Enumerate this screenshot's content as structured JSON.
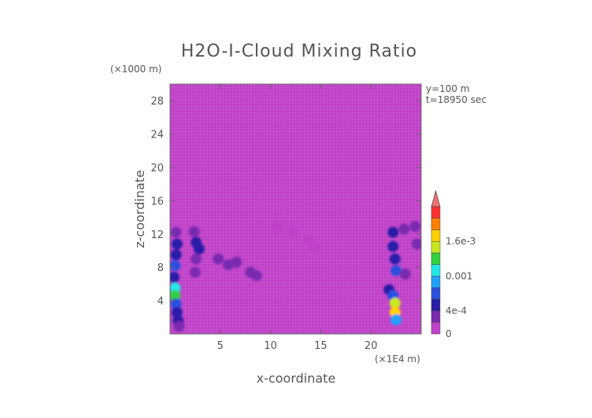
{
  "chart_data": {
    "type": "heatmap",
    "title": "H2O-I-Cloud Mixing Ratio",
    "xlabel": "x-coordinate",
    "ylabel": "z-coordinate",
    "x_unit": "(×1E4 m)",
    "y_unit": "(×1000 m)",
    "annotations": [
      "y=100 m",
      "t=18950 sec"
    ],
    "xlim": [
      0,
      25
    ],
    "ylim": [
      0,
      30
    ],
    "x_ticks": [
      5,
      10,
      15,
      20
    ],
    "y_ticks": [
      4,
      8,
      12,
      16,
      20,
      24,
      28
    ],
    "colorbar": {
      "levels": [
        0,
        0.0002,
        0.0004,
        0.0006,
        0.0008,
        0.001,
        0.0012,
        0.0014,
        0.0016,
        0.0018,
        0.002
      ],
      "labels": [
        "0",
        "4e-4",
        "0.001",
        "1.6e-3"
      ],
      "label_values": [
        0,
        0.0004,
        0.001,
        0.0016
      ],
      "colors": [
        "#c040c8",
        "#7a2ab0",
        "#2a1ea8",
        "#2a50e0",
        "#20a0ff",
        "#20e8e8",
        "#30d040",
        "#c8e820",
        "#ffd000",
        "#ff8000",
        "#ff3030"
      ],
      "extend": "max"
    },
    "cells": [
      {
        "x": 0.6,
        "z": 12.2,
        "v": 0.0003
      },
      {
        "x": 0.7,
        "z": 10.8,
        "v": 0.0005
      },
      {
        "x": 0.6,
        "z": 9.5,
        "v": 0.0004
      },
      {
        "x": 0.5,
        "z": 8.2,
        "v": 0.0006
      },
      {
        "x": 0.4,
        "z": 6.8,
        "v": 0.0004
      },
      {
        "x": 0.5,
        "z": 5.5,
        "v": 0.001
      },
      {
        "x": 0.5,
        "z": 4.6,
        "v": 0.0012
      },
      {
        "x": 0.6,
        "z": 3.6,
        "v": 0.0006
      },
      {
        "x": 0.7,
        "z": 2.6,
        "v": 0.0005
      },
      {
        "x": 0.8,
        "z": 1.6,
        "v": 0.0004
      },
      {
        "x": 0.9,
        "z": 0.9,
        "v": 0.0003
      },
      {
        "x": 2.4,
        "z": 12.3,
        "v": 0.0003
      },
      {
        "x": 2.6,
        "z": 11.0,
        "v": 0.0004
      },
      {
        "x": 2.9,
        "z": 10.2,
        "v": 0.0004
      },
      {
        "x": 2.6,
        "z": 9.0,
        "v": 0.0003
      },
      {
        "x": 2.5,
        "z": 7.4,
        "v": 0.0002
      },
      {
        "x": 4.8,
        "z": 9.0,
        "v": 0.0003
      },
      {
        "x": 5.8,
        "z": 8.3,
        "v": 0.0003
      },
      {
        "x": 6.6,
        "z": 8.6,
        "v": 0.0002
      },
      {
        "x": 8.0,
        "z": 7.4,
        "v": 0.0003
      },
      {
        "x": 8.6,
        "z": 7.0,
        "v": 0.0002
      },
      {
        "x": 10.6,
        "z": 12.8,
        "v": 5e-05
      },
      {
        "x": 12.2,
        "z": 12.3,
        "v": 5e-05
      },
      {
        "x": 13.8,
        "z": 11.2,
        "v": 4e-05
      },
      {
        "x": 14.5,
        "z": 10.4,
        "v": 4e-05
      },
      {
        "x": 21.8,
        "z": 5.3,
        "v": 0.0004
      },
      {
        "x": 22.2,
        "z": 4.6,
        "v": 0.0006
      },
      {
        "x": 22.4,
        "z": 3.7,
        "v": 0.0014
      },
      {
        "x": 22.4,
        "z": 2.6,
        "v": 0.0016
      },
      {
        "x": 22.5,
        "z": 1.7,
        "v": 0.0008
      },
      {
        "x": 22.5,
        "z": 7.6,
        "v": 0.0006
      },
      {
        "x": 22.4,
        "z": 9.0,
        "v": 0.0005
      },
      {
        "x": 22.2,
        "z": 10.5,
        "v": 0.0005
      },
      {
        "x": 22.2,
        "z": 12.2,
        "v": 0.0004
      },
      {
        "x": 23.3,
        "z": 12.6,
        "v": 0.0003
      },
      {
        "x": 24.4,
        "z": 12.9,
        "v": 0.0003
      },
      {
        "x": 24.6,
        "z": 10.8,
        "v": 0.0002
      },
      {
        "x": 23.4,
        "z": 7.2,
        "v": 0.0002
      }
    ]
  }
}
